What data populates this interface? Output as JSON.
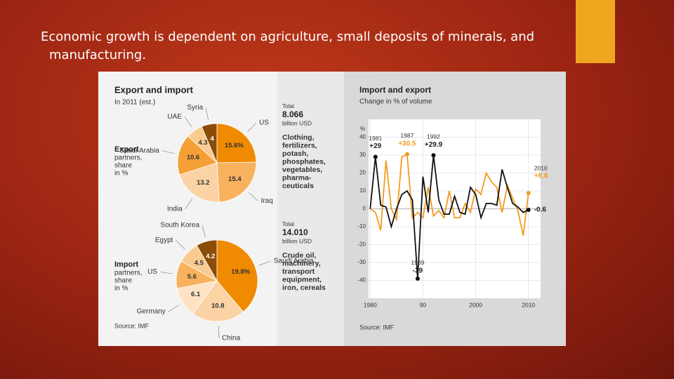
{
  "slide_text": "Economic growth is dependent on agriculture, small deposits of minerals, and manufacturing.",
  "infographic": {
    "title": "Export and import",
    "subtitle": "In 2011 (est.)",
    "source": "Source: IMF"
  },
  "chart_data": [
    {
      "type": "pie",
      "title": "Export",
      "subtitle": [
        "partners,",
        "share",
        "in %"
      ],
      "categories": [
        "US",
        "Iraq",
        "India",
        "Saudi Arabia",
        "UAE",
        "Syria"
      ],
      "values": [
        15.6,
        15.4,
        13.2,
        10.6,
        4.3,
        4
      ],
      "value_labels": [
        "15.6%",
        "15.4",
        "13.2",
        "10.6",
        "4.3",
        "4"
      ],
      "colors": [
        "#f08a00",
        "#f8b25e",
        "#fbd3a4",
        "#f5a035",
        "#f9cb91",
        "#8b4c08"
      ],
      "total": {
        "label": "Total",
        "value": "8.066",
        "unit": "billion USD"
      },
      "goods": [
        "Clothing,",
        "fertilizers,",
        "potash,",
        "phosphates,",
        "vegetables,",
        "pharma-",
        "ceuticals"
      ]
    },
    {
      "type": "pie",
      "title": "Import",
      "subtitle": [
        "partners,",
        "share",
        "in %"
      ],
      "categories": [
        "Saudi Arabia",
        "China",
        "Germany",
        "US",
        "Egypt",
        "South Korea"
      ],
      "values": [
        19.8,
        10.8,
        6.1,
        5.6,
        4.5,
        4.2
      ],
      "value_labels": [
        "19.8%",
        "10.8",
        "6.1",
        "5.6",
        "4.5",
        "4.2"
      ],
      "colors": [
        "#f08a00",
        "#fbd3a4",
        "#fde3c4",
        "#f8b25e",
        "#f9cb91",
        "#8b4c08"
      ],
      "total": {
        "label": "Total",
        "value": "14.010",
        "unit": "billion USD"
      },
      "goods": [
        "Crude oil,",
        "machinery,",
        "transport",
        "equipment,",
        "iron, cereals"
      ]
    },
    {
      "type": "line",
      "title": "Import and export",
      "subtitle": "Change in % of volume",
      "y_label": "%",
      "source": "Source: IMF",
      "x": [
        1980,
        1981,
        1982,
        1983,
        1984,
        1985,
        1986,
        1987,
        1988,
        1989,
        1990,
        1991,
        1992,
        1993,
        1994,
        1995,
        1996,
        1997,
        1998,
        1999,
        2000,
        2001,
        2002,
        2003,
        2004,
        2005,
        2006,
        2007,
        2008,
        2009,
        2010
      ],
      "series": [
        {
          "color": "#f39a1e",
          "values": [
            0,
            -2,
            -12,
            27,
            0,
            -6,
            29,
            30.5,
            -5,
            -2,
            -5,
            12,
            -4,
            -1,
            -5,
            10,
            -5,
            -5,
            3,
            -2,
            11,
            8,
            20,
            15,
            12,
            -2,
            13,
            6,
            -1,
            -15,
            8.8
          ]
        },
        {
          "color": "#111111",
          "values": [
            0,
            29,
            2,
            1,
            -10,
            0,
            8,
            10,
            5,
            -39,
            18,
            -2,
            29.9,
            5,
            -3,
            -3,
            7,
            -2,
            -3,
            12,
            8,
            -5,
            3,
            3,
            2,
            22,
            12,
            3,
            1,
            -2,
            -0.6
          ]
        }
      ],
      "annotations": [
        {
          "year": 1981,
          "value": 29,
          "label": "+29",
          "color": "#111111"
        },
        {
          "year": 1987,
          "value": 30.5,
          "label": "+30.5",
          "color": "#f39a1e"
        },
        {
          "year": 1992,
          "value": 29.9,
          "label": "+29.9",
          "color": "#111111"
        },
        {
          "year": 1989,
          "value": -39,
          "label": "-39",
          "color": "#111111"
        },
        {
          "year": 2010,
          "value": 8.8,
          "label": "+8.8",
          "color": "#f39a1e"
        },
        {
          "value": -0.6,
          "label": "-0.6",
          "color": "#111111"
        }
      ],
      "xlim": [
        1979.7,
        2012.3
      ],
      "ylim": [
        -50,
        50
      ],
      "xticks": [
        1980,
        {
          "value": 1990,
          "label": "90"
        },
        2000,
        2010
      ],
      "yticks": [
        40,
        30,
        20,
        10,
        0,
        -10,
        -20,
        -30,
        -40
      ],
      "grid": true
    }
  ]
}
